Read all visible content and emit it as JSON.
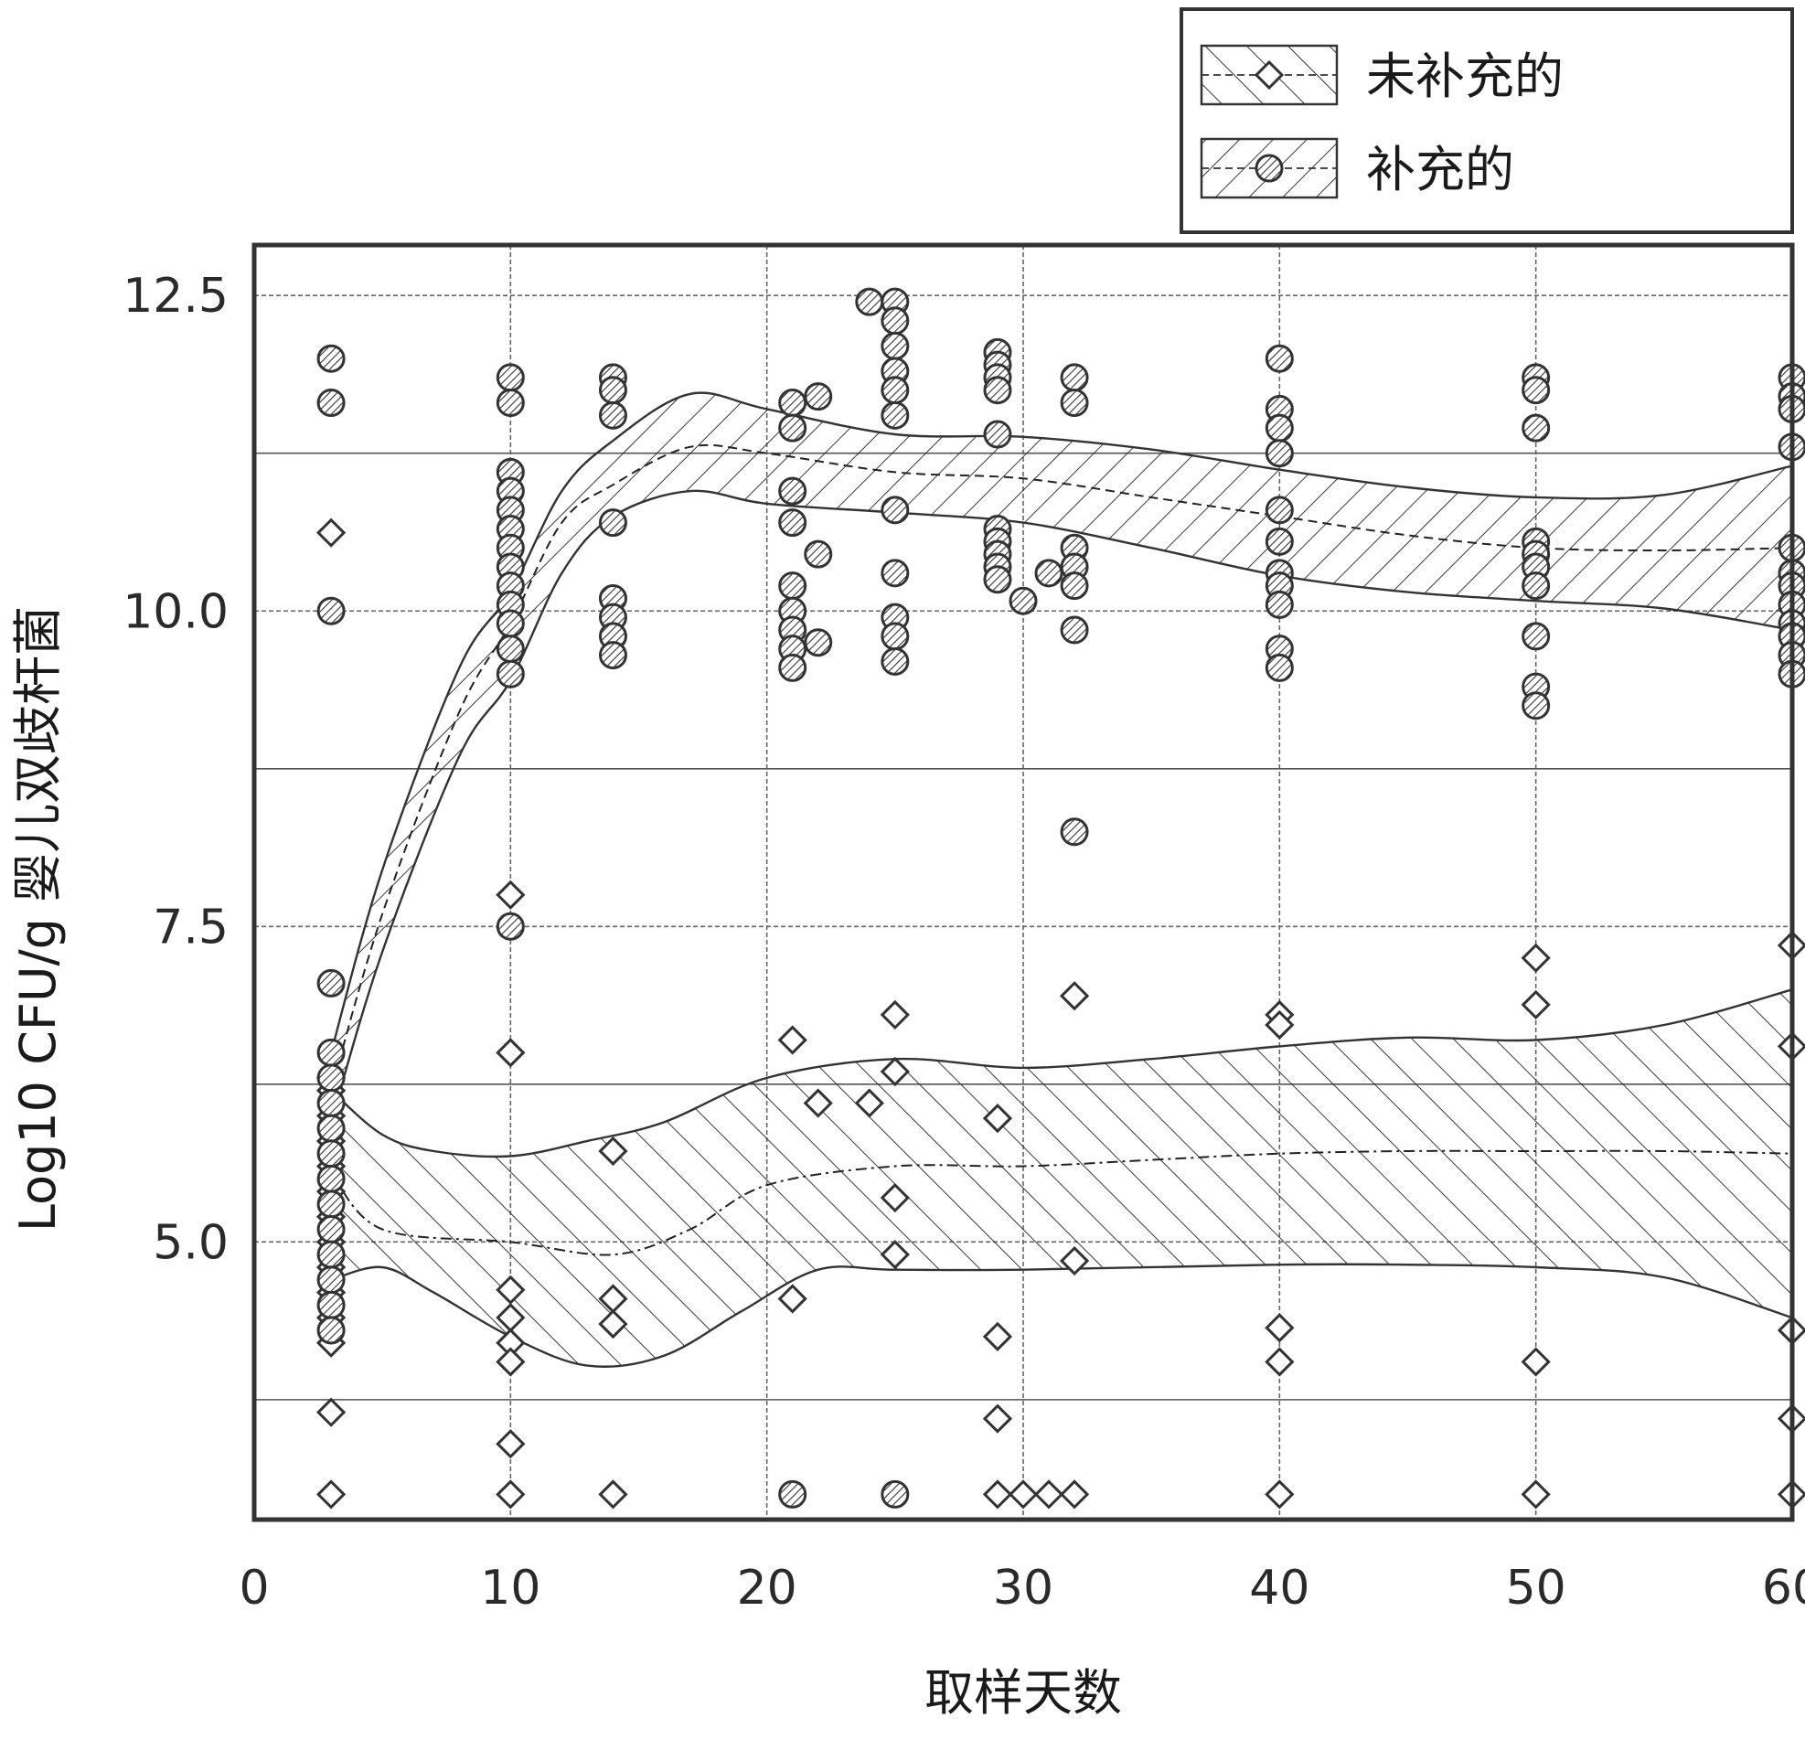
{
  "chart_data": {
    "type": "scatter",
    "xlabel": "取样天数",
    "ylabel": "Log10 CFU/g  婴儿双歧杆菌",
    "xlim": [
      0,
      60
    ],
    "ylim": [
      2.8,
      12.9
    ],
    "xticks": [
      0,
      10,
      20,
      30,
      40,
      50,
      60
    ],
    "xtick_labels": [
      "0",
      "10",
      "20",
      "30",
      "40",
      "50",
      "60"
    ],
    "yticks": [
      5.0,
      7.5,
      10.0,
      12.5
    ],
    "ytick_labels": [
      "5.0",
      "7.5",
      "10.0",
      "12.5"
    ],
    "grid": true,
    "legend_position": "top-right",
    "series": [
      {
        "name": "未补充的",
        "marker": "diamond",
        "band_pattern": "hatch-back",
        "points": [
          [
            3,
            10.62
          ],
          [
            3,
            6.3
          ],
          [
            3,
            6.2
          ],
          [
            3,
            6.0
          ],
          [
            3,
            5.8
          ],
          [
            3,
            5.6
          ],
          [
            3,
            5.4
          ],
          [
            3,
            5.2
          ],
          [
            3,
            5.0
          ],
          [
            3,
            4.8
          ],
          [
            3,
            4.6
          ],
          [
            3,
            4.4
          ],
          [
            3,
            4.2
          ],
          [
            3,
            3.65
          ],
          [
            3,
            3.0
          ],
          [
            10,
            7.75
          ],
          [
            10,
            6.5
          ],
          [
            10,
            4.62
          ],
          [
            10,
            4.4
          ],
          [
            10,
            4.2
          ],
          [
            10,
            4.05
          ],
          [
            10,
            3.4
          ],
          [
            10,
            3.0
          ],
          [
            14,
            5.72
          ],
          [
            14,
            4.55
          ],
          [
            14,
            4.35
          ],
          [
            14,
            3.0
          ],
          [
            21,
            6.6
          ],
          [
            21,
            4.55
          ],
          [
            22,
            6.1
          ],
          [
            24,
            6.1
          ],
          [
            25,
            6.8
          ],
          [
            25,
            6.35
          ],
          [
            25,
            5.35
          ],
          [
            25,
            4.9
          ],
          [
            29,
            5.98
          ],
          [
            29,
            4.25
          ],
          [
            29,
            3.6
          ],
          [
            29,
            3.0
          ],
          [
            30,
            3.0
          ],
          [
            31,
            3.0
          ],
          [
            32,
            6.95
          ],
          [
            32,
            4.85
          ],
          [
            32,
            3.0
          ],
          [
            40,
            6.8
          ],
          [
            40,
            6.72
          ],
          [
            40,
            4.32
          ],
          [
            40,
            4.05
          ],
          [
            40,
            3.0
          ],
          [
            50,
            7.25
          ],
          [
            50,
            6.88
          ],
          [
            50,
            4.05
          ],
          [
            50,
            3.0
          ],
          [
            60,
            7.35
          ],
          [
            60,
            6.55
          ],
          [
            60,
            4.3
          ],
          [
            60,
            3.6
          ],
          [
            60,
            3.0
          ]
        ],
        "fit_mean": [
          [
            3,
            5.55
          ],
          [
            5,
            5.1
          ],
          [
            10,
            5.0
          ],
          [
            14,
            4.9
          ],
          [
            17,
            5.1
          ],
          [
            20,
            5.45
          ],
          [
            25,
            5.6
          ],
          [
            30,
            5.6
          ],
          [
            35,
            5.65
          ],
          [
            40,
            5.7
          ],
          [
            45,
            5.72
          ],
          [
            50,
            5.72
          ],
          [
            55,
            5.72
          ],
          [
            60,
            5.7
          ]
        ],
        "fit_upper": [
          [
            3,
            6.2
          ],
          [
            5,
            5.85
          ],
          [
            7,
            5.72
          ],
          [
            10,
            5.68
          ],
          [
            13,
            5.8
          ],
          [
            16,
            5.95
          ],
          [
            20,
            6.3
          ],
          [
            25,
            6.45
          ],
          [
            30,
            6.38
          ],
          [
            35,
            6.45
          ],
          [
            40,
            6.55
          ],
          [
            45,
            6.62
          ],
          [
            50,
            6.6
          ],
          [
            55,
            6.72
          ],
          [
            60,
            7.0
          ]
        ],
        "fit_lower": [
          [
            3,
            4.7
          ],
          [
            5,
            4.8
          ],
          [
            7,
            4.6
          ],
          [
            10,
            4.25
          ],
          [
            13,
            4.02
          ],
          [
            16,
            4.1
          ],
          [
            19,
            4.45
          ],
          [
            22,
            4.78
          ],
          [
            25,
            4.78
          ],
          [
            30,
            4.78
          ],
          [
            40,
            4.82
          ],
          [
            45,
            4.82
          ],
          [
            50,
            4.8
          ],
          [
            55,
            4.72
          ],
          [
            60,
            4.4
          ]
        ]
      },
      {
        "name": "补充的",
        "marker": "circle",
        "band_pattern": "hatch-forward",
        "points": [
          [
            3,
            12.0
          ],
          [
            3,
            11.65
          ],
          [
            3,
            10.0
          ],
          [
            3,
            7.05
          ],
          [
            3,
            6.5
          ],
          [
            3,
            6.3
          ],
          [
            3,
            6.1
          ],
          [
            3,
            5.9
          ],
          [
            3,
            5.7
          ],
          [
            3,
            5.5
          ],
          [
            3,
            5.3
          ],
          [
            3,
            5.1
          ],
          [
            3,
            4.9
          ],
          [
            3,
            4.7
          ],
          [
            3,
            4.5
          ],
          [
            3,
            4.3
          ],
          [
            10,
            11.85
          ],
          [
            10,
            11.65
          ],
          [
            10,
            11.1
          ],
          [
            10,
            10.95
          ],
          [
            10,
            10.8
          ],
          [
            10,
            10.65
          ],
          [
            10,
            10.5
          ],
          [
            10,
            10.35
          ],
          [
            10,
            10.2
          ],
          [
            10,
            10.05
          ],
          [
            10,
            9.9
          ],
          [
            10,
            9.7
          ],
          [
            10,
            9.5
          ],
          [
            10,
            7.5
          ],
          [
            14,
            11.85
          ],
          [
            14,
            11.75
          ],
          [
            14,
            11.55
          ],
          [
            14,
            10.7
          ],
          [
            14,
            10.1
          ],
          [
            14,
            9.95
          ],
          [
            14,
            9.8
          ],
          [
            14,
            9.65
          ],
          [
            21,
            11.65
          ],
          [
            21,
            11.45
          ],
          [
            21,
            10.95
          ],
          [
            21,
            10.7
          ],
          [
            21,
            10.2
          ],
          [
            21,
            10.0
          ],
          [
            21,
            9.85
          ],
          [
            21,
            9.7
          ],
          [
            21,
            9.55
          ],
          [
            21,
            3.0
          ],
          [
            22,
            11.7
          ],
          [
            22,
            10.45
          ],
          [
            22,
            9.75
          ],
          [
            24,
            12.45
          ],
          [
            25,
            12.45
          ],
          [
            25,
            12.3
          ],
          [
            25,
            12.1
          ],
          [
            25,
            11.9
          ],
          [
            25,
            11.75
          ],
          [
            25,
            11.55
          ],
          [
            25,
            10.8
          ],
          [
            25,
            10.3
          ],
          [
            25,
            9.95
          ],
          [
            25,
            9.8
          ],
          [
            25,
            9.6
          ],
          [
            25,
            3.0
          ],
          [
            29,
            12.05
          ],
          [
            29,
            11.95
          ],
          [
            29,
            11.85
          ],
          [
            29,
            11.75
          ],
          [
            29,
            11.4
          ],
          [
            29,
            10.65
          ],
          [
            29,
            10.55
          ],
          [
            29,
            10.45
          ],
          [
            29,
            10.35
          ],
          [
            29,
            10.25
          ],
          [
            30,
            10.08
          ],
          [
            31,
            10.3
          ],
          [
            32,
            11.85
          ],
          [
            32,
            11.65
          ],
          [
            32,
            10.5
          ],
          [
            32,
            10.35
          ],
          [
            32,
            10.2
          ],
          [
            32,
            9.85
          ],
          [
            32,
            8.25
          ],
          [
            40,
            12.0
          ],
          [
            40,
            11.6
          ],
          [
            40,
            11.45
          ],
          [
            40,
            11.25
          ],
          [
            40,
            10.8
          ],
          [
            40,
            10.55
          ],
          [
            40,
            10.3
          ],
          [
            40,
            10.2
          ],
          [
            40,
            10.05
          ],
          [
            40,
            9.7
          ],
          [
            40,
            9.55
          ],
          [
            50,
            11.85
          ],
          [
            50,
            11.75
          ],
          [
            50,
            11.45
          ],
          [
            50,
            10.55
          ],
          [
            50,
            10.45
          ],
          [
            50,
            10.35
          ],
          [
            50,
            10.2
          ],
          [
            50,
            9.8
          ],
          [
            50,
            9.4
          ],
          [
            50,
            9.25
          ],
          [
            60,
            11.85
          ],
          [
            60,
            11.7
          ],
          [
            60,
            11.6
          ],
          [
            60,
            11.3
          ],
          [
            60,
            10.5
          ],
          [
            60,
            10.3
          ],
          [
            60,
            10.2
          ],
          [
            60,
            10.05
          ],
          [
            60,
            9.9
          ],
          [
            60,
            9.8
          ],
          [
            60,
            9.65
          ],
          [
            60,
            9.5
          ]
        ],
        "fit_mean": [
          [
            3,
            6.2
          ],
          [
            5,
            7.6
          ],
          [
            8,
            9.2
          ],
          [
            10,
            9.9
          ],
          [
            12,
            10.7
          ],
          [
            14,
            11.0
          ],
          [
            17,
            11.3
          ],
          [
            20,
            11.25
          ],
          [
            25,
            11.1
          ],
          [
            30,
            11.05
          ],
          [
            35,
            10.9
          ],
          [
            40,
            10.75
          ],
          [
            45,
            10.6
          ],
          [
            50,
            10.5
          ],
          [
            55,
            10.48
          ],
          [
            60,
            10.5
          ]
        ],
        "fit_upper": [
          [
            3,
            6.5
          ],
          [
            5,
            7.95
          ],
          [
            8,
            9.55
          ],
          [
            10,
            10.15
          ],
          [
            12,
            10.95
          ],
          [
            14,
            11.35
          ],
          [
            17,
            11.72
          ],
          [
            20,
            11.6
          ],
          [
            25,
            11.4
          ],
          [
            30,
            11.38
          ],
          [
            35,
            11.28
          ],
          [
            40,
            11.12
          ],
          [
            45,
            10.98
          ],
          [
            50,
            10.9
          ],
          [
            55,
            10.92
          ],
          [
            60,
            11.15
          ]
        ],
        "fit_lower": [
          [
            3,
            5.95
          ],
          [
            5,
            7.3
          ],
          [
            8,
            8.85
          ],
          [
            10,
            9.45
          ],
          [
            12,
            10.3
          ],
          [
            14,
            10.75
          ],
          [
            17,
            10.95
          ],
          [
            20,
            10.85
          ],
          [
            25,
            10.78
          ],
          [
            30,
            10.7
          ],
          [
            35,
            10.5
          ],
          [
            40,
            10.28
          ],
          [
            45,
            10.15
          ],
          [
            50,
            10.08
          ],
          [
            55,
            10.02
          ],
          [
            60,
            9.85
          ]
        ]
      }
    ]
  }
}
